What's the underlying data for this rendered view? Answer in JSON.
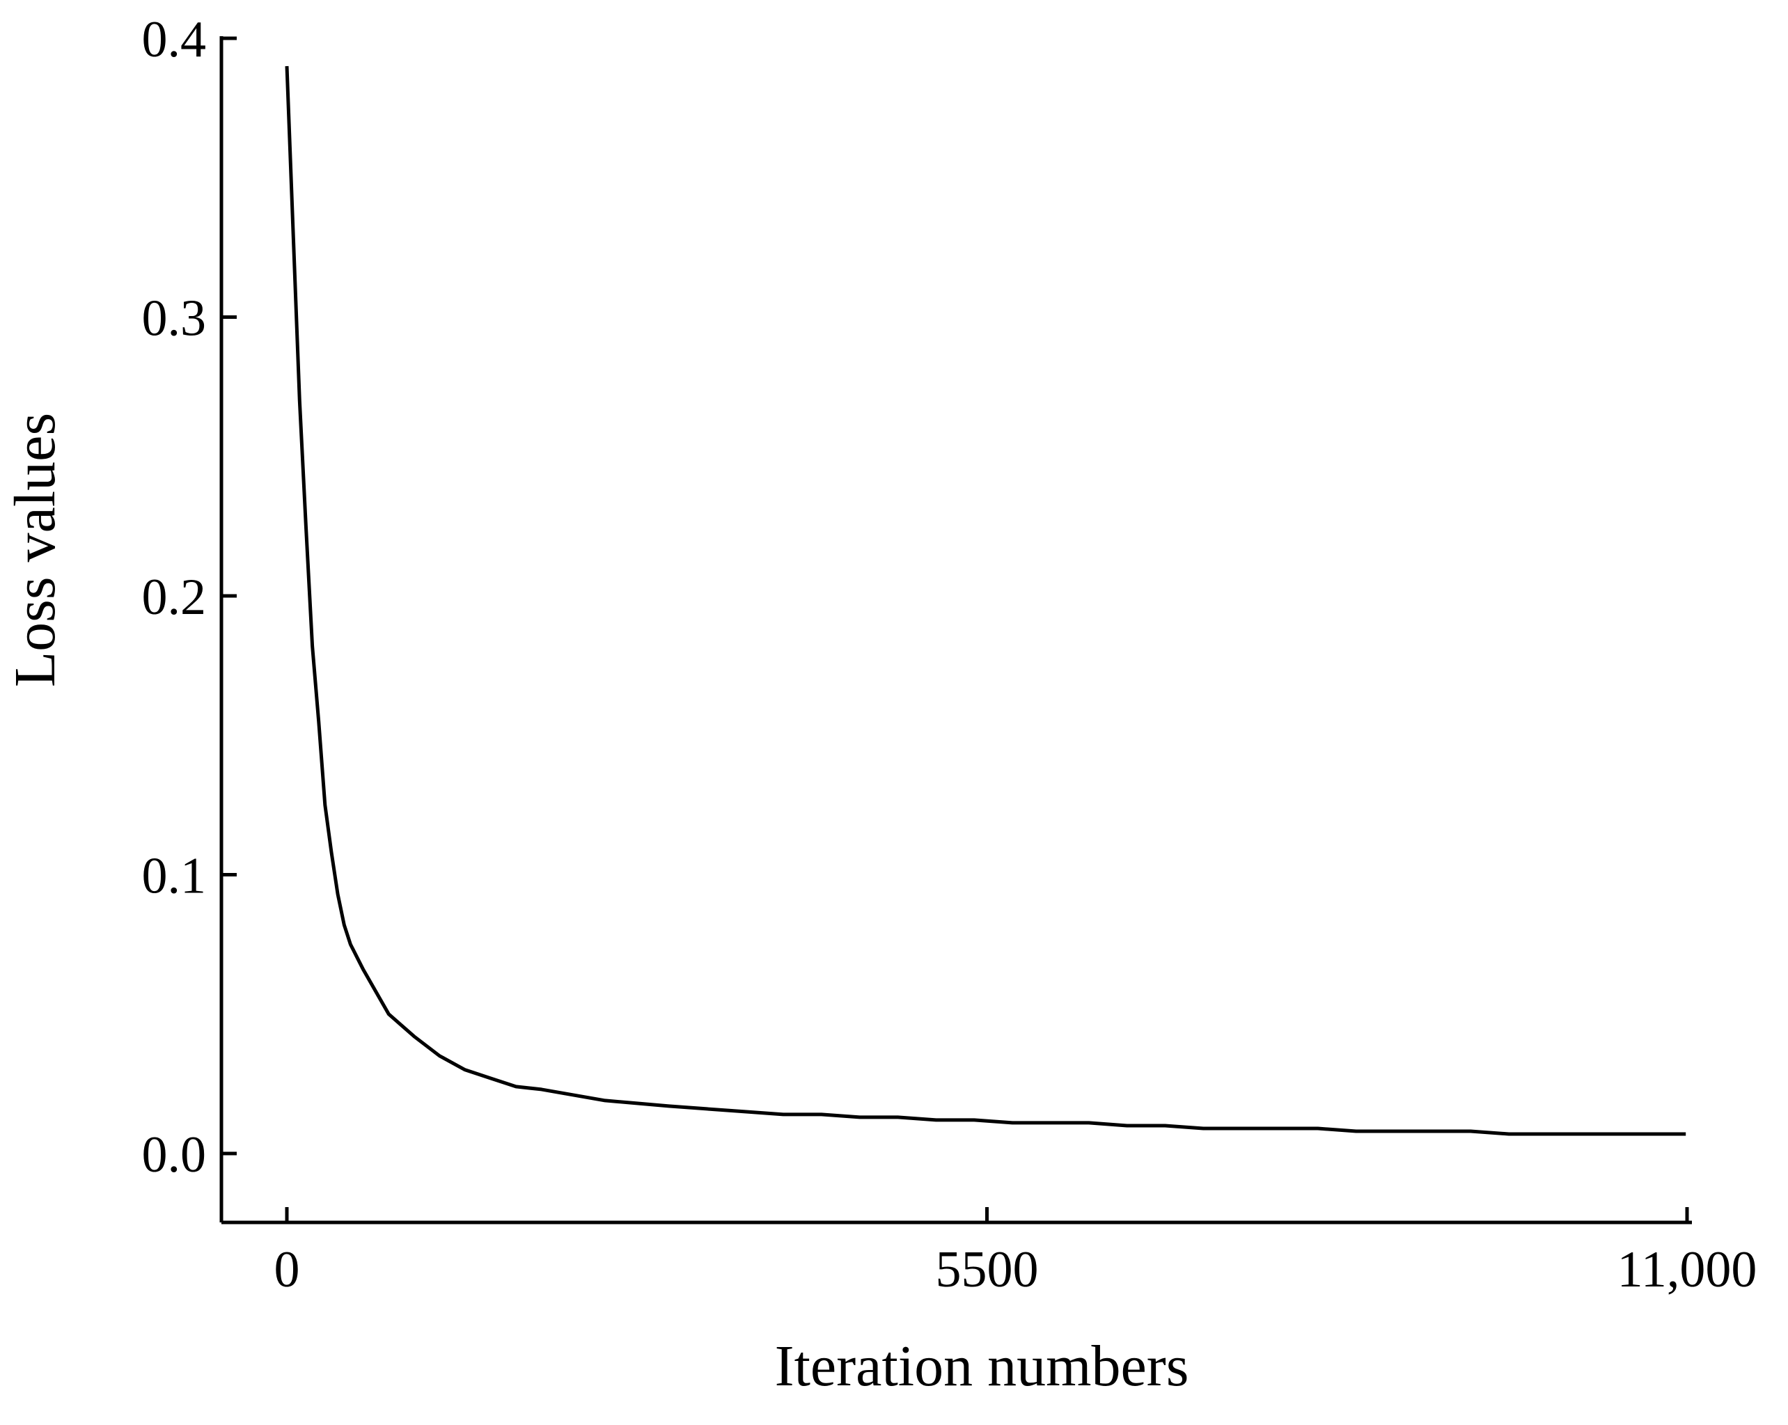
{
  "chart_data": {
    "type": "line",
    "title": "",
    "xlabel": "Iteration numbers",
    "ylabel": "Loss values",
    "xlim": [
      0,
      11000
    ],
    "ylim": [
      -0.025,
      0.4
    ],
    "x_ticks": [
      0,
      5500,
      11000
    ],
    "x_tick_labels": [
      "0",
      "5500",
      "11,000"
    ],
    "y_ticks": [
      0.0,
      0.1,
      0.2,
      0.3,
      0.4
    ],
    "y_tick_labels": [
      "0.0",
      "0.1",
      "0.2",
      "0.3",
      "0.4"
    ],
    "grid": false,
    "legend": "none",
    "line_color": "#000000",
    "series": [
      {
        "x": [
          0,
          50,
          100,
          150,
          200,
          250,
          300,
          350,
          400,
          450,
          500,
          600,
          700,
          800,
          900,
          1000,
          1200,
          1400,
          1600,
          1800,
          2000,
          2250,
          2500,
          2750,
          3000,
          3300,
          3600,
          3900,
          4200,
          4500,
          4800,
          5100,
          5400,
          5700,
          6000,
          6300,
          6600,
          6900,
          7200,
          7500,
          7800,
          8100,
          8400,
          8700,
          9000,
          9300,
          9600,
          9900,
          10200,
          10500,
          10800,
          10990
        ],
        "y": [
          0.39,
          0.33,
          0.27,
          0.225,
          0.182,
          0.155,
          0.125,
          0.108,
          0.093,
          0.082,
          0.075,
          0.066,
          0.058,
          0.05,
          0.046,
          0.042,
          0.035,
          0.03,
          0.027,
          0.024,
          0.023,
          0.021,
          0.019,
          0.018,
          0.017,
          0.016,
          0.015,
          0.014,
          0.014,
          0.013,
          0.013,
          0.012,
          0.012,
          0.011,
          0.011,
          0.011,
          0.01,
          0.01,
          0.009,
          0.009,
          0.009,
          0.009,
          0.008,
          0.008,
          0.008,
          0.008,
          0.007,
          0.007,
          0.007,
          0.007,
          0.007,
          0.007
        ]
      }
    ]
  }
}
